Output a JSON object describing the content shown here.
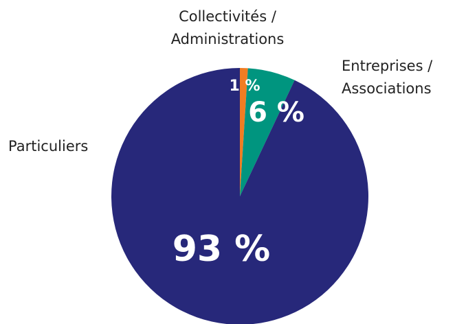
{
  "chart_data": {
    "type": "pie",
    "categories": [
      "Collectivités /\nAdministrations",
      "Entreprises /\nAssociations",
      "Particuliers"
    ],
    "values": [
      1,
      6,
      93
    ],
    "value_labels": [
      "1 %",
      "6 %",
      "93 %"
    ],
    "colors": [
      "#f07d22",
      "#00957f",
      "#27287a"
    ]
  }
}
